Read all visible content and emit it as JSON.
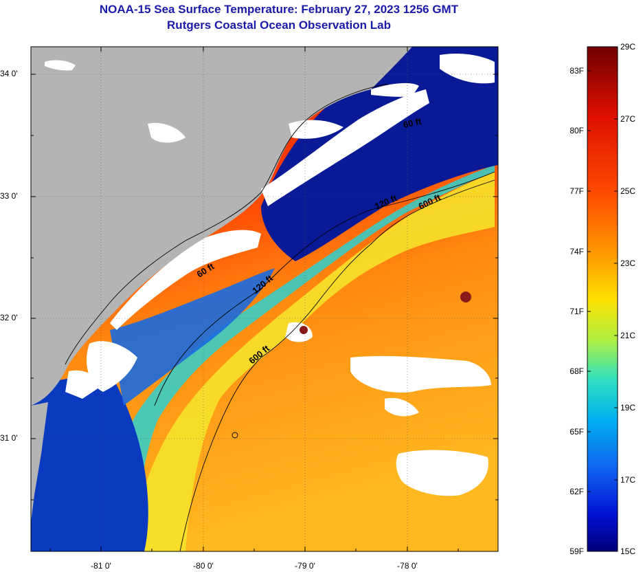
{
  "title_line1": "NOAA-15 Sea Surface Temperature:  February 27, 2023 1256 GMT",
  "title_line2": "Rutgers Coastal Ocean Observation Lab",
  "map": {
    "lat_ticks": [
      "34 0'",
      "33 0'",
      "32 0'",
      "31 0'"
    ],
    "lon_ticks": [
      "-81 0'",
      "-80 0'",
      "-79 0'",
      "-78 0'"
    ],
    "depth_contours": [
      "60 ft",
      "120 ft",
      "600 ft"
    ],
    "contour_labels": [
      "60 ft",
      "120 ft",
      "600 ft",
      "60 ft",
      "120 ft",
      "600 ft"
    ],
    "colors": {
      "land": "#b4b4b4",
      "cloud": "#ffffff",
      "cold_water": "#0a1a96",
      "warm_water": "#ff3c00"
    }
  },
  "colorbar": {
    "fahrenheit_labels": [
      "83F",
      "80F",
      "77F",
      "74F",
      "71F",
      "68F",
      "65F",
      "62F",
      "59F"
    ],
    "celsius_labels": [
      "29C",
      "27C",
      "25C",
      "23C",
      "21C",
      "19C",
      "17C",
      "15C"
    ],
    "range_c": [
      15,
      29
    ],
    "range_f": [
      59,
      84.2
    ]
  }
}
